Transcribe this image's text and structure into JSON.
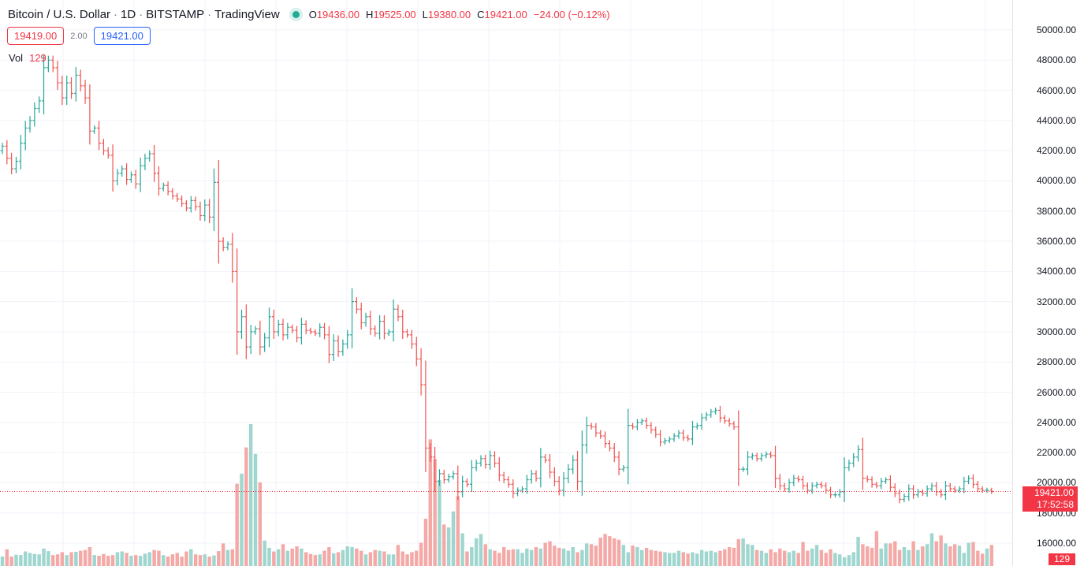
{
  "legend": {
    "symbol": "Bitcoin / U.S. Dollar",
    "interval": "1D",
    "exchange": "BITSTAMP",
    "provider": "TradingView",
    "status_icon": "market-open-dot",
    "open_label": "O",
    "open": "19436.00",
    "high_label": "H",
    "high": "19525.00",
    "low_label": "L",
    "low": "19380.00",
    "close_label": "C",
    "close": "19421.00",
    "change": "−24.00 (−0.12%)"
  },
  "trade": {
    "bid": "19419.00",
    "spread": "2.00",
    "ask": "19421.00"
  },
  "volume": {
    "label": "Vol",
    "value": "129"
  },
  "price_axis": {
    "labels": [
      "50000.00",
      "48000.00",
      "46000.00",
      "44000.00",
      "42000.00",
      "40000.00",
      "38000.00",
      "36000.00",
      "34000.00",
      "32000.00",
      "30000.00",
      "28000.00",
      "26000.00",
      "24000.00",
      "22000.00",
      "20000.00",
      "18000.00",
      "16000.00"
    ],
    "current_price": "19421.00",
    "countdown": "17:52:58",
    "volume_tag": "129"
  },
  "colors": {
    "up": "#26a69a",
    "down": "#ef5350",
    "vol_up": "#9fd6cf",
    "vol_down": "#f4a9a7",
    "grid": "#f0f3fa",
    "price_line": "#f23645"
  },
  "chart_data": {
    "type": "ohlc",
    "ylim": [
      15500,
      50800
    ],
    "grid": true,
    "closes": [
      42300,
      41500,
      40800,
      41300,
      42500,
      43500,
      44000,
      44800,
      45300,
      47500,
      48000,
      47500,
      46500,
      45500,
      46500,
      45800,
      47000,
      46300,
      45500,
      43300,
      43500,
      42500,
      42000,
      41700,
      40000,
      40500,
      40800,
      40100,
      40400,
      39800,
      41000,
      41500,
      41800,
      40500,
      39500,
      39700,
      39300,
      39000,
      38800,
      38500,
      38200,
      38700,
      38300,
      37700,
      38400,
      37600,
      39900,
      36000,
      35600,
      35800,
      34000,
      30000,
      31000,
      29000,
      30000,
      30200,
      29000,
      29600,
      31000,
      30000,
      30500,
      29800,
      30300,
      30100,
      29600,
      30500,
      30100,
      30000,
      29900,
      30300,
      29800,
      28500,
      29400,
      28700,
      29200,
      29800,
      32000,
      31500,
      30600,
      31000,
      30200,
      29900,
      30700,
      29900,
      30000,
      31500,
      31000,
      30000,
      29800,
      29200,
      28200,
      26500,
      22300,
      21700,
      20100,
      20600,
      20200,
      20400,
      20600,
      19400,
      20100,
      19900,
      21000,
      21300,
      21600,
      21200,
      21800,
      21300,
      20500,
      20200,
      19900,
      19300,
      19500,
      19600,
      20200,
      20600,
      20300,
      21700,
      21500,
      20700,
      20100,
      19500,
      20300,
      20900,
      21500,
      20100,
      22500,
      23800,
      23700,
      23300,
      23100,
      22600,
      22300,
      21700,
      20900,
      21000,
      23800,
      23700,
      24000,
      24100,
      23800,
      23500,
      23200,
      22700,
      22800,
      22900,
      23100,
      23300,
      23000,
      22900,
      23700,
      23800,
      24300,
      24500,
      24700,
      24800,
      24300,
      24100,
      23900,
      23700,
      20900,
      20900,
      21700,
      21800,
      21600,
      21800,
      21900,
      21800,
      20300,
      19800,
      19600,
      20000,
      20300,
      20200,
      19800,
      19500,
      19800,
      19900,
      19800,
      19500,
      19200,
      19200,
      19400,
      21000,
      21300,
      21700,
      22200,
      20300,
      20200,
      19900,
      19800,
      20100,
      20200,
      19700,
      19300,
      18900,
      19100,
      19600,
      19200,
      19400,
      19300,
      19600,
      19800,
      19400,
      19200,
      19800,
      19600,
      19500,
      19600,
      20100,
      20300,
      19900,
      19600,
      19500,
      19500,
      19421
    ],
    "volumes": [
      130,
      230,
      130,
      155,
      150,
      200,
      180,
      165,
      160,
      240,
      205,
      150,
      160,
      190,
      150,
      190,
      195,
      210,
      220,
      260,
      150,
      140,
      165,
      140,
      150,
      190,
      200,
      180,
      140,
      150,
      140,
      170,
      190,
      220,
      210,
      150,
      130,
      160,
      180,
      130,
      200,
      230,
      160,
      150,
      160,
      130,
      145,
      205,
      310,
      220,
      230,
      1130,
      1270,
      1630,
      1950,
      1540,
      1150,
      350,
      250,
      200,
      230,
      300,
      210,
      240,
      270,
      240,
      190,
      165,
      150,
      160,
      210,
      260,
      175,
      190,
      220,
      270,
      260,
      240,
      210,
      160,
      190,
      220,
      210,
      200,
      160,
      160,
      290,
      200,
      160,
      190,
      210,
      320,
      650,
      1740,
      1470,
      1180,
      570,
      530,
      750,
      960,
      450,
      200,
      260,
      380,
      440,
      300,
      230,
      210,
      180,
      260,
      220,
      230,
      230,
      180,
      240,
      220,
      260,
      240,
      320,
      340,
      280,
      250,
      240,
      210,
      260,
      190,
      220,
      310,
      300,
      280,
      390,
      440,
      410,
      380,
      360,
      290,
      190,
      280,
      260,
      220,
      250,
      220,
      210,
      200,
      190,
      180,
      180,
      210,
      190,
      170,
      190,
      170,
      220,
      200,
      210,
      190,
      210,
      230,
      260,
      250,
      370,
      380,
      300,
      290,
      220,
      210,
      180,
      230,
      190,
      240,
      210,
      190,
      210,
      180,
      330,
      210,
      240,
      290,
      220,
      180,
      230,
      180,
      160,
      120,
      150,
      190,
      400,
      300,
      270,
      250,
      480,
      240,
      310,
      310,
      340,
      220,
      260,
      220,
      340,
      220,
      270,
      300,
      450,
      340,
      420,
      310,
      270,
      300,
      280,
      180,
      320,
      330,
      210,
      170,
      240,
      290,
      270,
      250,
      200,
      130,
      200,
      190,
      240,
      190,
      180,
      160,
      129
    ],
    "price_axis_range": [
      15000,
      50000
    ]
  }
}
